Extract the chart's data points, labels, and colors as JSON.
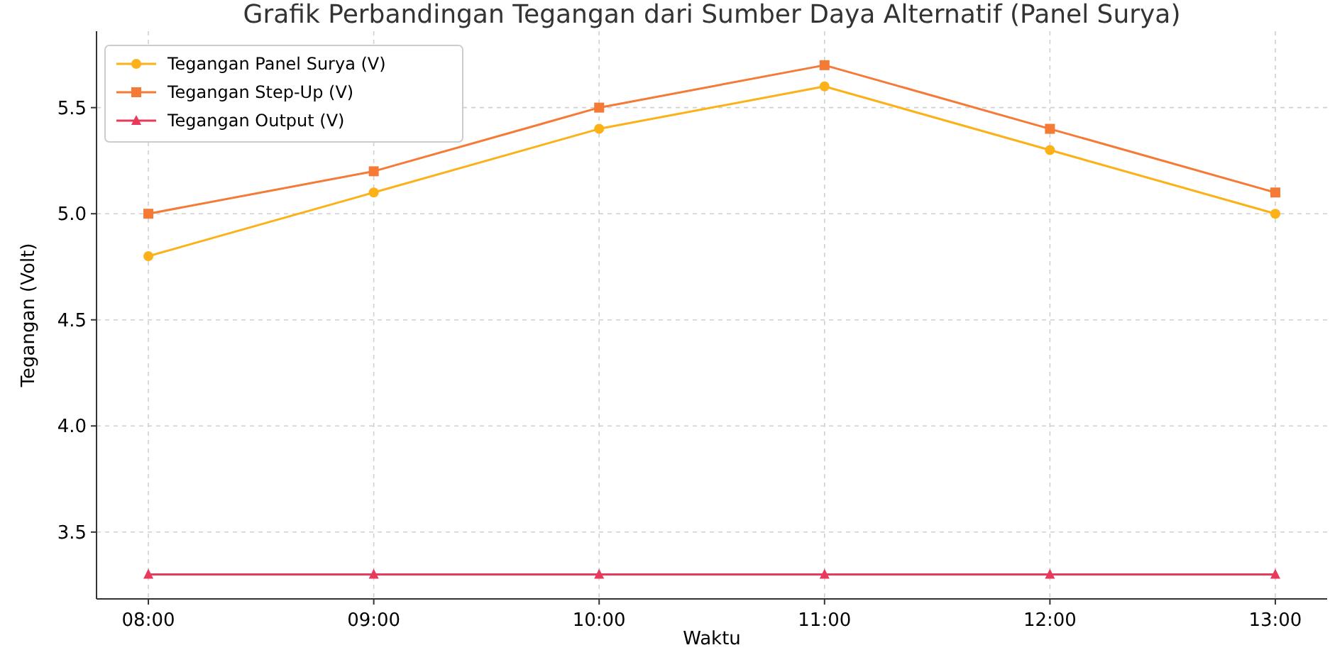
{
  "chart_data": {
    "type": "line",
    "title": "Grafik Perbandingan Tegangan dari Sumber Daya Alternatif (Panel Surya)",
    "xlabel": "Waktu",
    "ylabel": "Tegangan (Volt)",
    "categories": [
      "08:00",
      "09:00",
      "10:00",
      "11:00",
      "12:00",
      "13:00"
    ],
    "series": [
      {
        "name": "Tegangan Panel Surya (V)",
        "color": "#fbb117",
        "marker": "circle",
        "values": [
          4.8,
          5.1,
          5.4,
          5.6,
          5.3,
          5.0
        ]
      },
      {
        "name": "Tegangan Step-Up (V)",
        "color": "#f47a36",
        "marker": "square",
        "values": [
          5.0,
          5.2,
          5.5,
          5.7,
          5.4,
          5.1
        ]
      },
      {
        "name": "Tegangan Output (V)",
        "color": "#ea3a5c",
        "marker": "triangle",
        "values": [
          3.3,
          3.3,
          3.3,
          3.3,
          3.3,
          3.3
        ]
      }
    ],
    "ylim": [
      3.185,
      5.86
    ],
    "yticks": [
      3.5,
      {
        "value": 4,
        "label": "4.0"
      },
      4.5,
      {
        "value": 5,
        "label": "5.0"
      },
      5.5
    ],
    "grid": true,
    "legend": "top left",
    "line_style": "solid"
  }
}
